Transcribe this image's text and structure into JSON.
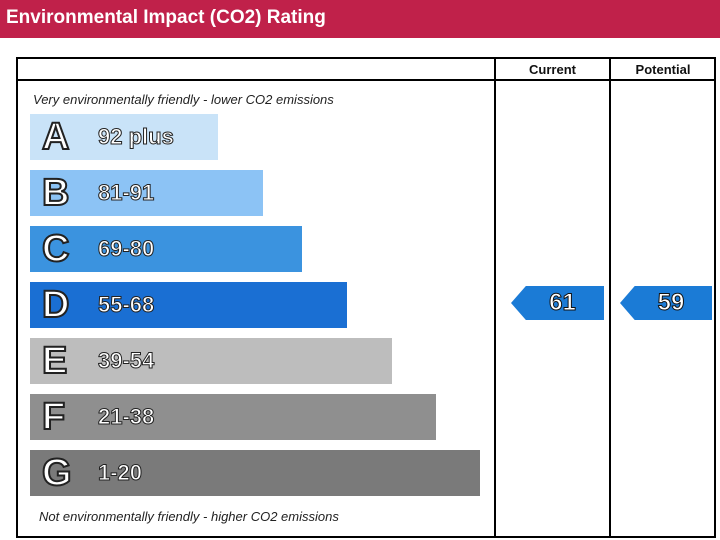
{
  "header": {
    "title": "Environmental Impact (CO2) Rating"
  },
  "table": {
    "col_current": "Current",
    "col_potential": "Potential",
    "top_caption": "Very environmentally friendly - lower CO2 emissions",
    "bottom_caption": "Not environmentally friendly - higher CO2 emissions"
  },
  "chart_data": {
    "type": "bar",
    "categories": [
      "A",
      "B",
      "C",
      "D",
      "E",
      "F",
      "G"
    ],
    "ranges": [
      "92 plus",
      "81-91",
      "69-80",
      "55-68",
      "39-54",
      "21-38",
      "1-20"
    ],
    "band_colors": [
      "#c9e3f8",
      "#8cc3f5",
      "#3b93df",
      "#1a6fd3",
      "#bdbdbd",
      "#8f8f8f",
      "#7a7a7a"
    ],
    "current": {
      "value": 61,
      "band": "D",
      "color": "#1b7bd6"
    },
    "potential": {
      "value": 59,
      "band": "D",
      "color": "#1b7bd6"
    }
  }
}
